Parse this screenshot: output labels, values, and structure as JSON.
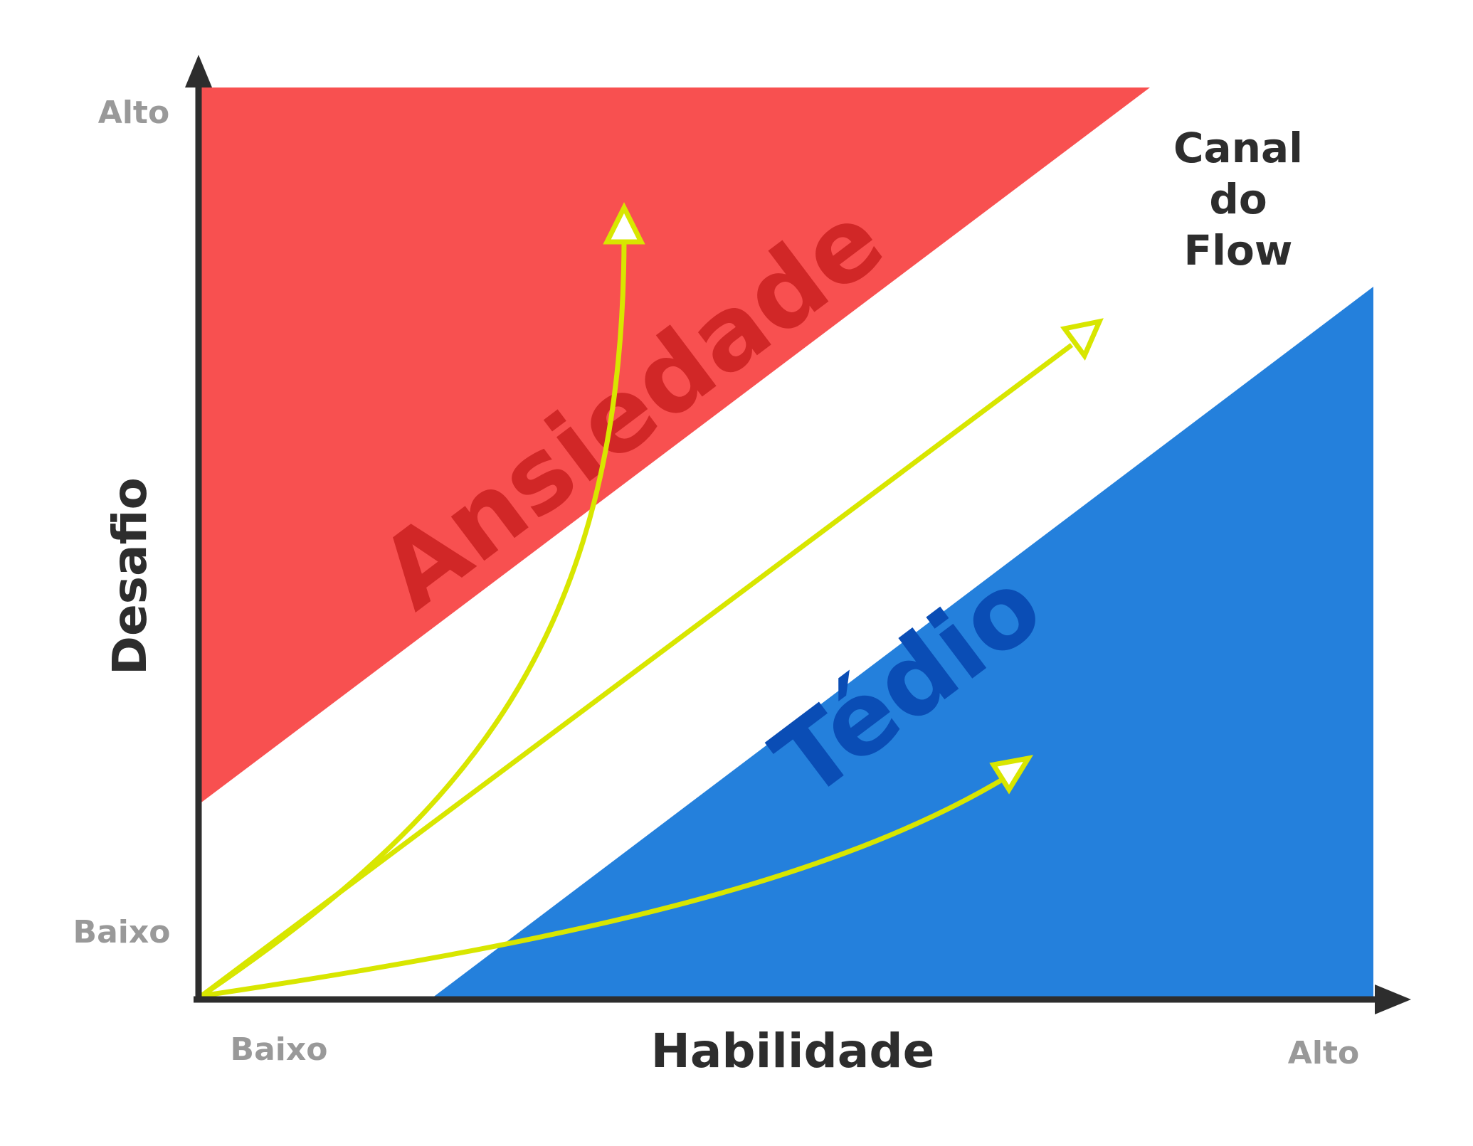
{
  "axes": {
    "x_label": "Habilidade",
    "y_label": "Desafio",
    "x_low": "Baixo",
    "x_high": "Alto",
    "y_low": "Baixo",
    "y_high": "Alto",
    "axis_color": "#2d2d2d",
    "tick_label_color": "#999999"
  },
  "zones": {
    "anxiety": {
      "label": "Ansiedade",
      "fill": "#f85050",
      "text_color": "#d12727"
    },
    "boredom": {
      "label": "Tédio",
      "fill": "#2480dc",
      "text_color": "#0a4db5"
    },
    "flow": {
      "label_line1": "Canal",
      "label_line2": "do",
      "label_line3": "Flow",
      "text_color": "#2d2d2d"
    }
  },
  "arrows": {
    "color": "#d8e600",
    "paths": [
      {
        "name": "arrow-to-anxiety"
      },
      {
        "name": "arrow-through-flow"
      },
      {
        "name": "arrow-to-boredom"
      }
    ]
  }
}
